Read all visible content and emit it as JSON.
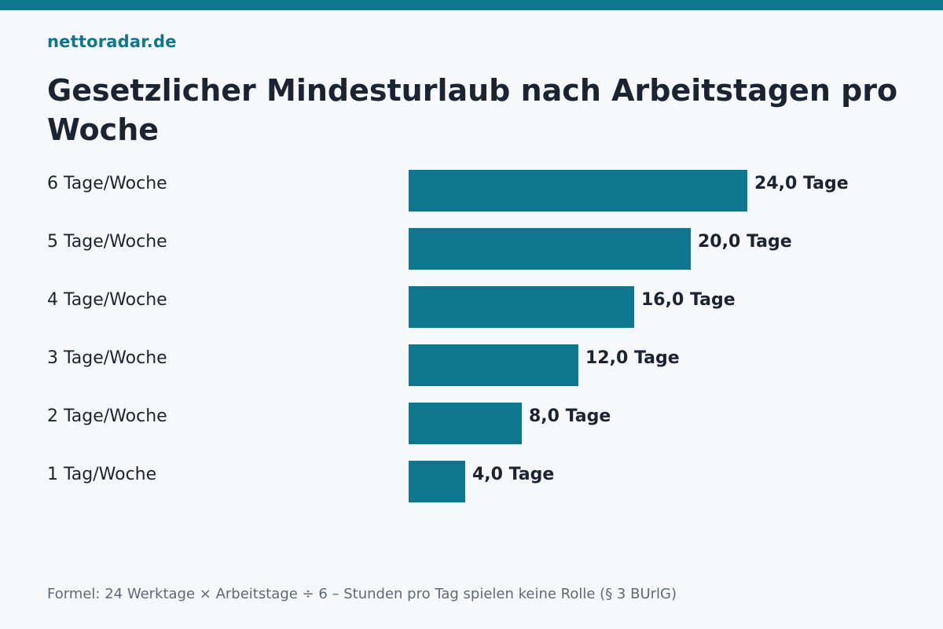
{
  "colors": {
    "accent": "#10768f",
    "text": "#1b2433",
    "muted": "#5d6879",
    "background": "#f6f8fb"
  },
  "brand": "nettoradar.de",
  "footnote": "Formel: 24 Werktage × Arbeitstage ÷ 6 – Stunden pro Tag spielen keine Rolle (§ 3 BUrlG)",
  "chart_data": {
    "type": "bar",
    "orientation": "horizontal",
    "title": "Gesetzlicher Mindesturlaub nach Arbeitstagen pro Woche",
    "categories": [
      "6 Tage/Woche",
      "5 Tage/Woche",
      "4 Tage/Woche",
      "3 Tage/Woche",
      "2 Tage/Woche",
      "1 Tag/Woche"
    ],
    "values": [
      24,
      20,
      16,
      12,
      8,
      4
    ],
    "value_labels": [
      "24,0 Tage",
      "20,0 Tage",
      "16,0 Tage",
      "12,0 Tage",
      "8,0 Tage",
      "4,0 Tage"
    ],
    "xlim": [
      0,
      24
    ],
    "grid": false,
    "legend": "none"
  }
}
